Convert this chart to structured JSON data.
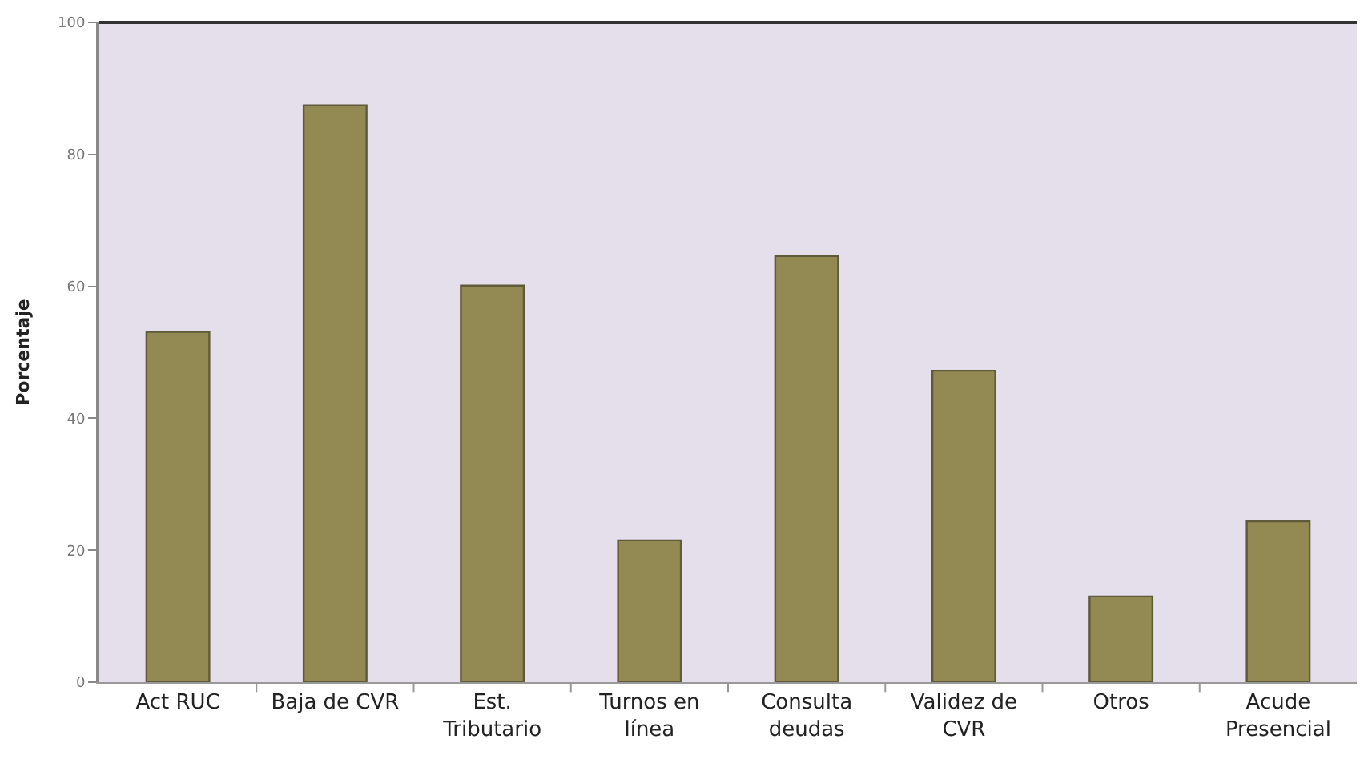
{
  "chart_data": {
    "type": "bar",
    "ylabel": "Porcentaje",
    "categories": [
      "Act RUC",
      "Baja de CVR",
      "Est.\nTributario",
      "Turnos en\nlínea",
      "Consulta\ndeudas",
      "Validez de\nCVR",
      "Otros",
      "Acude\nPresencial"
    ],
    "values": [
      53.1,
      87.4,
      60.1,
      21.5,
      64.6,
      47.2,
      13.0,
      24.4
    ],
    "color": "#938953",
    "ylim": [
      0,
      100
    ],
    "yticks": [
      0,
      20,
      40,
      60,
      80,
      100
    ],
    "grid": false,
    "legend": false
  }
}
